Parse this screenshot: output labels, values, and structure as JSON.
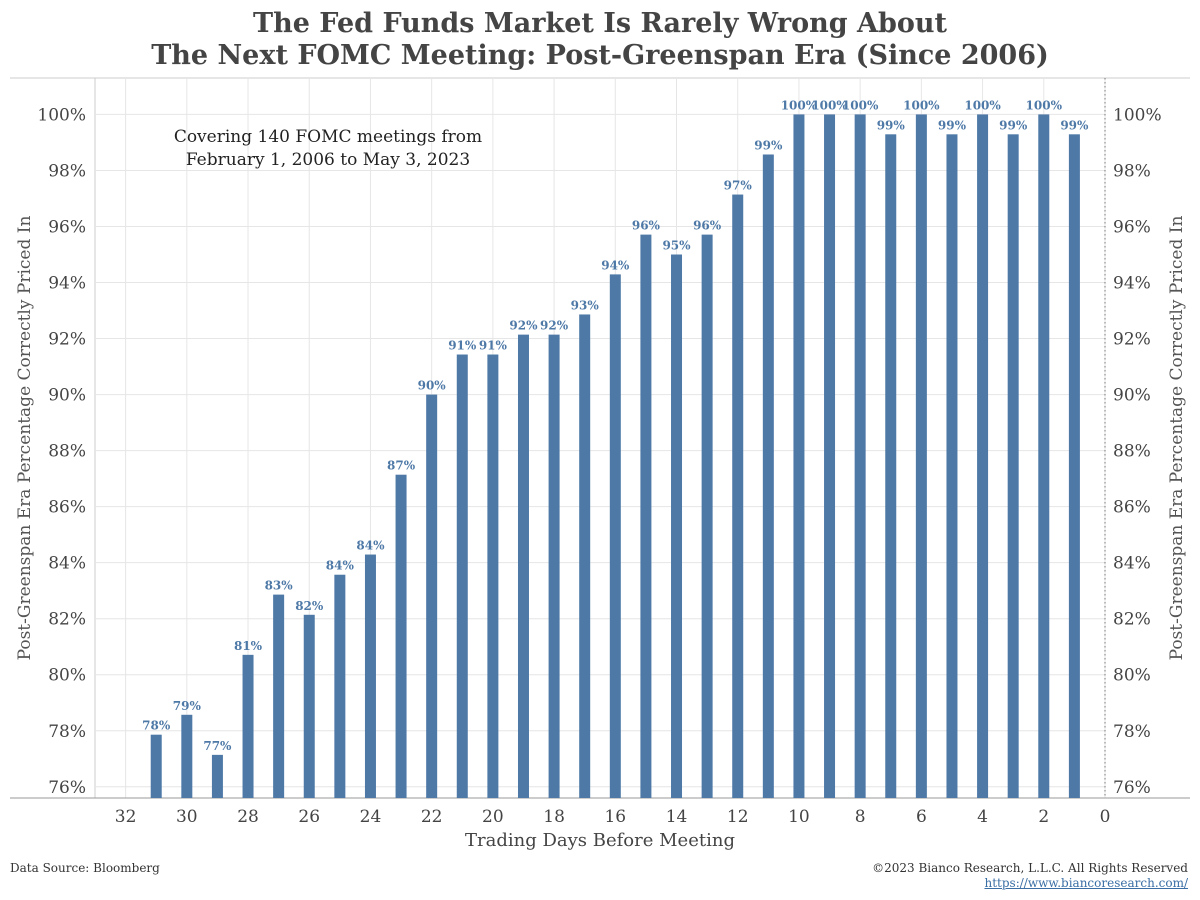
{
  "title_line1": "The Fed Funds Market Is Rarely Wrong About",
  "title_line2": "The Next FOMC Meeting: Post-Greenspan Era (Since 2006)",
  "footer": {
    "source": "Data Source: Bloomberg",
    "copyright": "©2023 Bianco Research, L.L.C. All Rights Reserved",
    "url": "https://www.biancoresearch.com/"
  },
  "colors": {
    "bar": "#4e79a7",
    "label": "#4e79a7",
    "grid": "#e6e6e6",
    "axis": "#666666"
  },
  "chart_data": {
    "type": "bar",
    "title": "The Fed Funds Market Is Rarely Wrong About The Next FOMC Meeting: Post-Greenspan Era (Since 2006)",
    "annotation": "Covering 140 FOMC meetings from\nFebruary 1, 2006 to May 3, 2023",
    "xlabel": "Trading Days Before Meeting",
    "ylabel": "Post-Greenspan Era Percentage Correctly Priced In",
    "ylabel_right": "Post-Greenspan Era Percentage Correctly Priced In",
    "x_reversed": true,
    "xlim": [
      33,
      0
    ],
    "ylim": [
      75.6,
      101.3
    ],
    "xticks": [
      32,
      30,
      28,
      26,
      24,
      22,
      20,
      18,
      16,
      14,
      12,
      10,
      8,
      6,
      4,
      2,
      0
    ],
    "yticks": [
      76,
      78,
      80,
      82,
      84,
      86,
      88,
      90,
      92,
      94,
      96,
      98,
      100
    ],
    "ytick_labels": [
      "76%",
      "78%",
      "80%",
      "82%",
      "84%",
      "86%",
      "88%",
      "90%",
      "92%",
      "94%",
      "96%",
      "98%",
      "100%"
    ],
    "x": [
      31,
      30,
      29,
      28,
      27,
      26,
      25,
      24,
      23,
      22,
      21,
      20,
      19,
      18,
      17,
      16,
      15,
      14,
      13,
      12,
      11,
      10,
      9,
      8,
      7,
      6,
      5,
      4,
      3,
      2,
      1
    ],
    "values": [
      77.86,
      78.57,
      77.14,
      80.71,
      82.86,
      82.14,
      83.57,
      84.29,
      87.14,
      90.0,
      91.43,
      91.43,
      92.14,
      92.14,
      92.86,
      94.29,
      95.71,
      95.0,
      95.71,
      97.14,
      98.57,
      100.0,
      100.0,
      100.0,
      99.29,
      100.0,
      99.29,
      100.0,
      99.29,
      100.0,
      99.29
    ],
    "data_labels": [
      "78%",
      "79%",
      "77%",
      "81%",
      "83%",
      "82%",
      "84%",
      "84%",
      "87%",
      "90%",
      "91%",
      "91%",
      "92%",
      "92%",
      "93%",
      "94%",
      "96%",
      "95%",
      "96%",
      "97%",
      "99%",
      "100%",
      "100%",
      "100%",
      "99%",
      "100%",
      "99%",
      "100%",
      "99%",
      "100%",
      "99%"
    ],
    "grid": true,
    "reference_line_x": 0
  }
}
